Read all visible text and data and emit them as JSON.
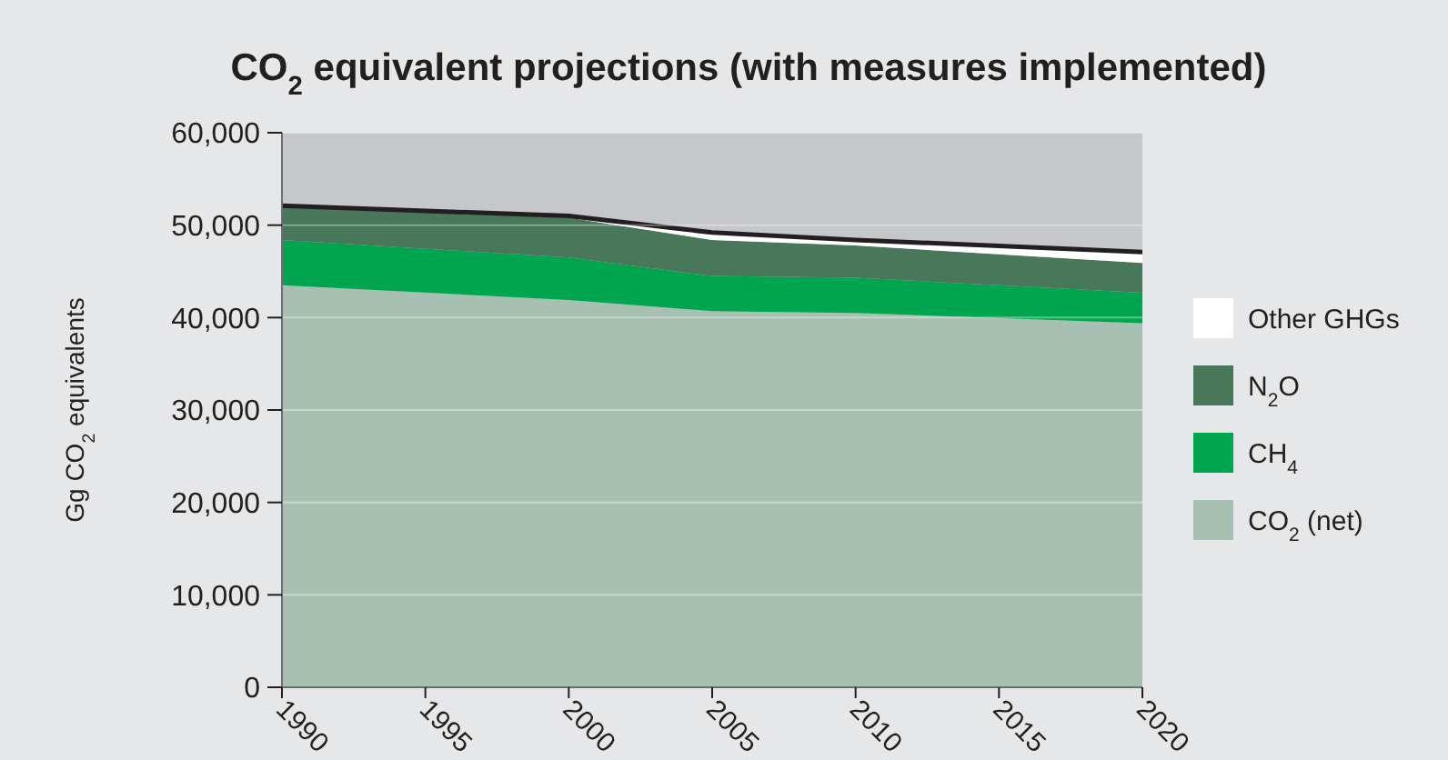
{
  "chart_data": {
    "type": "area",
    "stacked": true,
    "title": "CO$_{2}$ equivalent projections (with measures implemented)",
    "ylabel": "Gg CO$_{2}$ equivalents",
    "x": [
      1990,
      2000,
      2005,
      2010,
      2020
    ],
    "xlim": [
      1990,
      2020
    ],
    "xticks": [
      1990,
      1995,
      2000,
      2005,
      2010,
      2015,
      2020
    ],
    "ylim": [
      0,
      60000
    ],
    "yticks": [
      {
        "value": 0,
        "label": "0"
      },
      {
        "value": 10000,
        "label": "10,000"
      },
      {
        "value": 20000,
        "label": "20,000"
      },
      {
        "value": 30000,
        "label": "30,000"
      },
      {
        "value": 40000,
        "label": "40,000"
      },
      {
        "value": 50000,
        "label": "50,000"
      },
      {
        "value": 60000,
        "label": "60,000"
      }
    ],
    "grid": "y",
    "legend": "right",
    "series": [
      {
        "name": "CO$_{2}$ (net)",
        "color": "#a7c0b1",
        "values": [
          43500,
          41900,
          40700,
          40500,
          39400
        ]
      },
      {
        "name": "CH$_{4}$",
        "color": "#00a54f",
        "values": [
          4900,
          4600,
          3800,
          3800,
          3300
        ]
      },
      {
        "name": "N$_{2}$O",
        "color": "#48775a",
        "values": [
          3700,
          4300,
          3900,
          3500,
          3200
        ]
      },
      {
        "name": "Other GHGs",
        "color": "#ffffff",
        "values": [
          0,
          200,
          800,
          600,
          1200
        ]
      }
    ]
  }
}
